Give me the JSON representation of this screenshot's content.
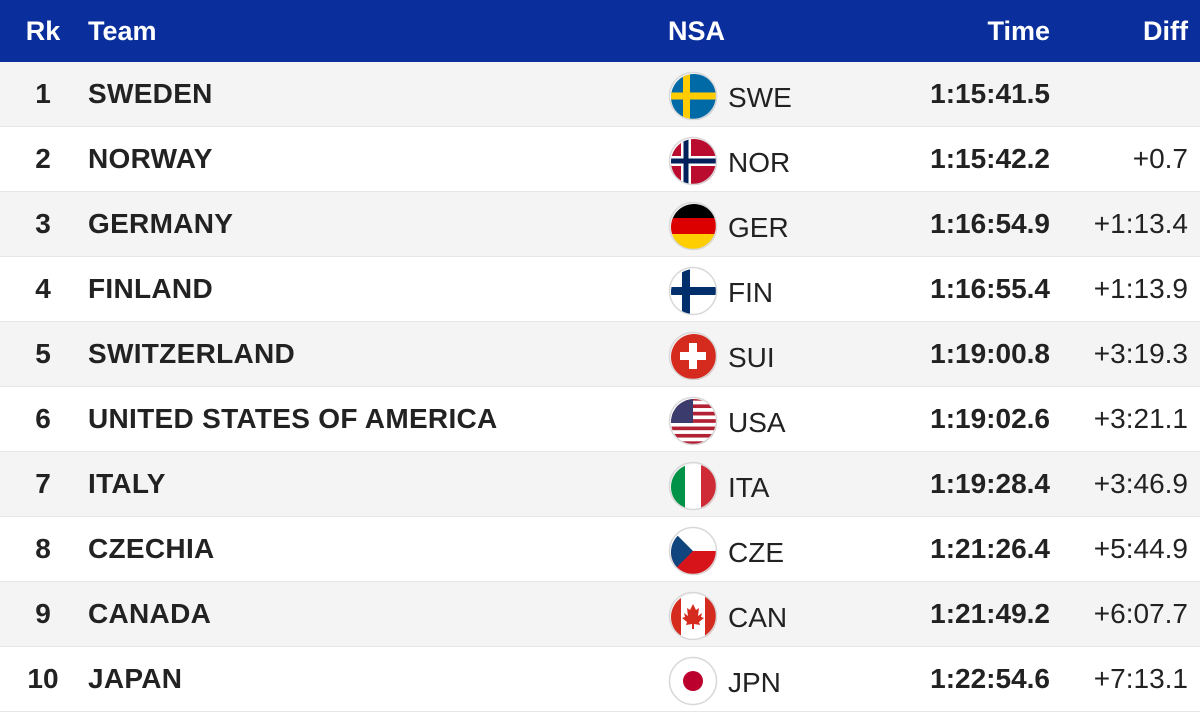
{
  "table": {
    "header": [
      "Rk",
      "Team",
      "NSA",
      "Time",
      "Diff"
    ],
    "rows": [
      [
        1,
        "SWEDEN",
        "SWE",
        "1:15:41.5",
        null
      ],
      [
        2,
        "NORWAY",
        "NOR",
        "1:15:42.2",
        "+0.7"
      ],
      [
        3,
        "GERMANY",
        "GER",
        "1:16:54.9",
        "+1:13.4"
      ],
      [
        4,
        "FINLAND",
        "FIN",
        "1:16:55.4",
        "+1:13.9"
      ],
      [
        5,
        "SWITZERLAND",
        "SUI",
        "1:19:00.8",
        "+3:19.3"
      ],
      [
        6,
        "UNITED STATES OF AMERICA",
        "USA",
        "1:19:02.6",
        "+3:21.1"
      ],
      [
        7,
        "ITALY",
        "ITA",
        "1:19:28.4",
        "+3:46.9"
      ],
      [
        8,
        "CZECHIA",
        "CZE",
        "1:21:26.4",
        "+5:44.9"
      ],
      [
        9,
        "CANADA",
        "CAN",
        "1:21:49.2",
        "+6:07.7"
      ],
      [
        10,
        "JAPAN",
        "JPN",
        "1:22:54.6",
        "+7:13.1"
      ]
    ]
  }
}
